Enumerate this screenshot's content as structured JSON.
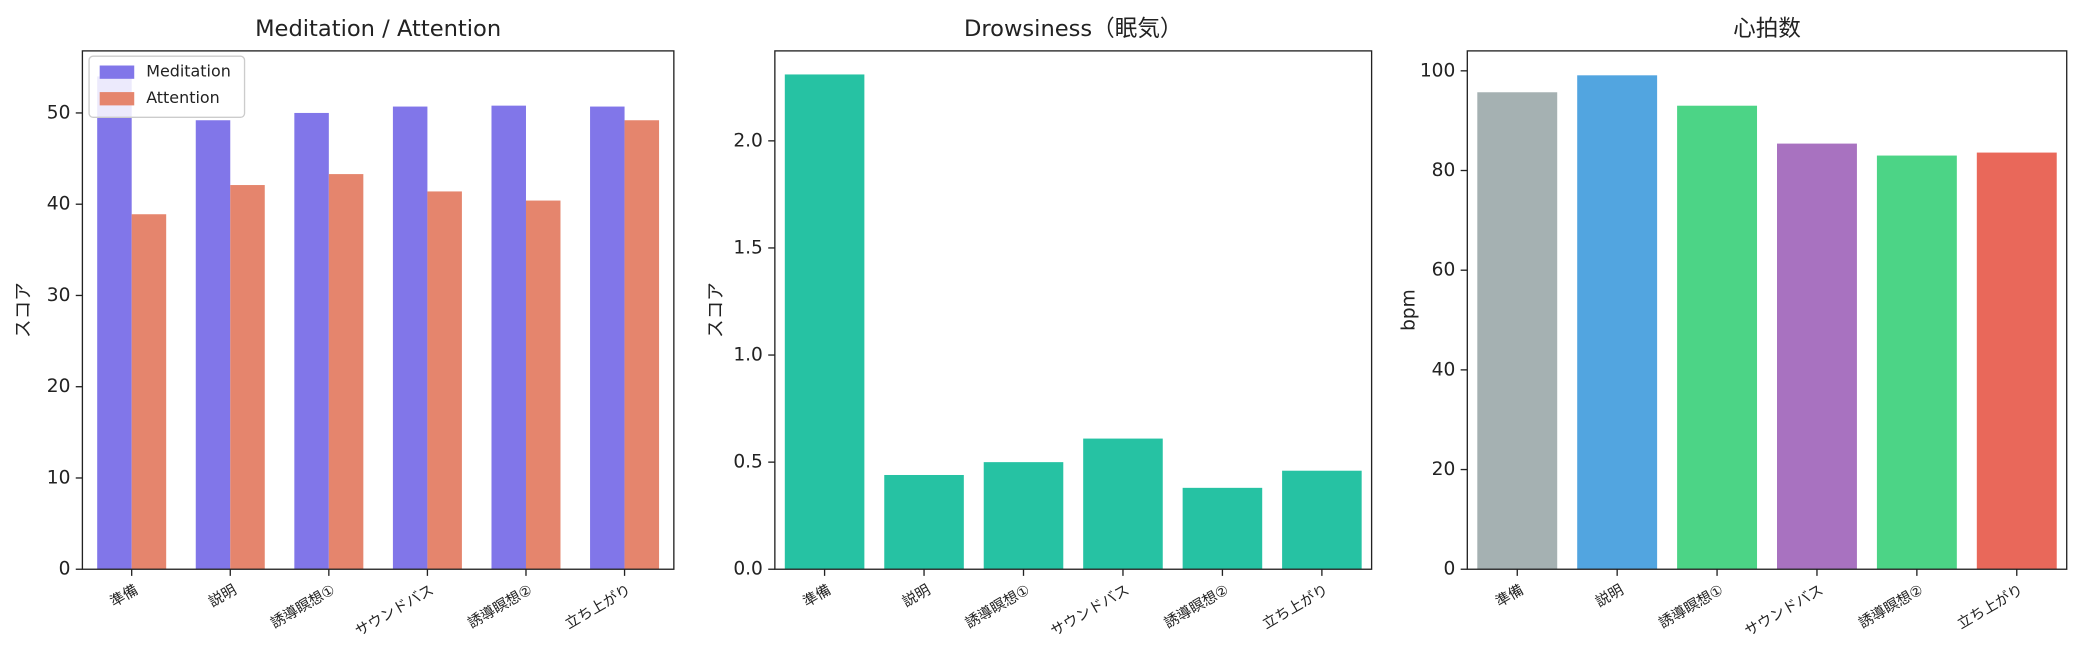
{
  "chart_data": [
    {
      "type": "bar",
      "title": "Meditation / Attention",
      "ylabel": "スコア",
      "categories": [
        "準備",
        "説明",
        "誘導瞑想①",
        "サウンドバス",
        "誘導瞑想②",
        "立ち上がり"
      ],
      "series": [
        {
          "name": "Meditation",
          "color": "#8176e9",
          "values": [
            54.0,
            49.2,
            50.0,
            50.7,
            50.8,
            50.7
          ]
        },
        {
          "name": "Attention",
          "color": "#e5856d",
          "values": [
            38.9,
            42.1,
            43.3,
            41.4,
            40.4,
            49.2
          ]
        }
      ],
      "ylim": [
        0,
        56.8
      ],
      "yticks": [
        0,
        10,
        20,
        30,
        40,
        50
      ],
      "legend": "upper left"
    },
    {
      "type": "bar",
      "title": "Drowsiness（眠気）",
      "ylabel": "スコア",
      "categories": [
        "準備",
        "説明",
        "誘導瞑想①",
        "サウンドバス",
        "誘導瞑想②",
        "立ち上がり"
      ],
      "values": [
        2.31,
        0.44,
        0.5,
        0.61,
        0.38,
        0.46
      ],
      "color": "#26c2a3",
      "ylim": [
        0,
        2.42
      ],
      "yticks": [
        {
          "value": 0,
          "label": "0.0"
        },
        {
          "value": 0.5,
          "label": "0.5"
        },
        {
          "value": 1,
          "label": "1.0"
        },
        {
          "value": 1.5,
          "label": "1.5"
        },
        {
          "value": 2,
          "label": "2.0"
        }
      ]
    },
    {
      "type": "bar",
      "title": "心拍数",
      "ylabel": "bpm",
      "categories": [
        "準備",
        "説明",
        "誘導瞑想①",
        "サウンドバス",
        "誘導瞑想②",
        "立ち上がり"
      ],
      "values": [
        95.7,
        99.1,
        93.0,
        85.4,
        83.0,
        83.6
      ],
      "colors": [
        "#a5b1b2",
        "#52a5e0",
        "#4cd486",
        "#a872c0",
        "#4cd486",
        "#e9685a"
      ],
      "ylim": [
        0,
        104
      ],
      "yticks": [
        0,
        20,
        40,
        60,
        80,
        100
      ]
    }
  ]
}
